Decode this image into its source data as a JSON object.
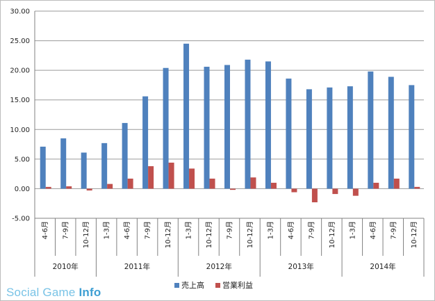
{
  "chart_data": {
    "type": "bar",
    "title": "",
    "xlabel": "",
    "ylabel": "",
    "ylim": [
      -5.0,
      30.0
    ],
    "yticks": [
      "30.00",
      "25.00",
      "20.00",
      "15.00",
      "10.00",
      "5.00",
      "0.00",
      "-5.00"
    ],
    "ytick_values": [
      30,
      25,
      20,
      15,
      10,
      5,
      0,
      -5
    ],
    "categories": [
      "4-6月",
      "7-9月",
      "10-12月",
      "1-3月",
      "4-6月",
      "7-9月",
      "10-12月",
      "1-3月",
      "10-12月",
      "7-9月",
      "10-12月",
      "1-3月",
      "4-6月",
      "7-9月",
      "10-12月",
      "1-3月",
      "4-6月",
      "7-9月",
      "10-12月"
    ],
    "groups": [
      {
        "label": "2010年",
        "count": 3
      },
      {
        "label": "2011年",
        "count": 4
      },
      {
        "label": "2012年",
        "count": 4
      },
      {
        "label": "2013年",
        "count": 4
      },
      {
        "label": "2014年",
        "count": 4
      }
    ],
    "series": [
      {
        "name": "売上高",
        "color": "#4f81bd",
        "values": [
          7.1,
          8.5,
          6.1,
          7.7,
          11.1,
          15.6,
          20.4,
          24.5,
          20.6,
          20.9,
          21.8,
          21.5,
          18.6,
          16.8,
          17.1,
          17.3,
          19.8,
          18.9,
          17.5
        ]
      },
      {
        "name": "営業利益",
        "color": "#c0504d",
        "values": [
          0.3,
          0.4,
          -0.3,
          0.8,
          1.7,
          3.8,
          4.4,
          3.4,
          1.7,
          -0.2,
          1.9,
          1.0,
          -0.6,
          -2.3,
          -0.9,
          -1.2,
          1.0,
          1.7,
          0.3
        ]
      }
    ],
    "grid": true,
    "legend": "bottom"
  },
  "watermark": {
    "text": "Social Game ",
    "bold": "Info"
  }
}
